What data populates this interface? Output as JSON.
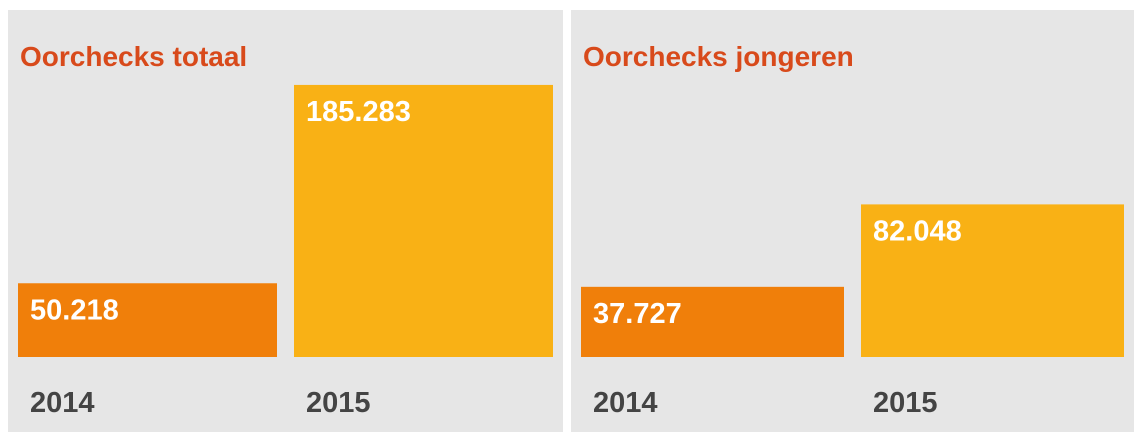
{
  "chart_data": [
    {
      "type": "bar",
      "title": "Oorchecks totaal",
      "categories": [
        "2014",
        "2015"
      ],
      "values": [
        50218,
        185283
      ],
      "value_labels": [
        "50.218",
        "185.283"
      ],
      "colors": [
        "#f07f0a",
        "#f9b115"
      ],
      "ylim": [
        0,
        190000
      ]
    },
    {
      "type": "bar",
      "title": "Oorchecks jongeren",
      "categories": [
        "2014",
        "2015"
      ],
      "values": [
        37727,
        82048
      ],
      "value_labels": [
        "37.727",
        "82.048"
      ],
      "colors": [
        "#f07f0a",
        "#f9b115"
      ],
      "ylim": [
        0,
        150000
      ]
    }
  ]
}
